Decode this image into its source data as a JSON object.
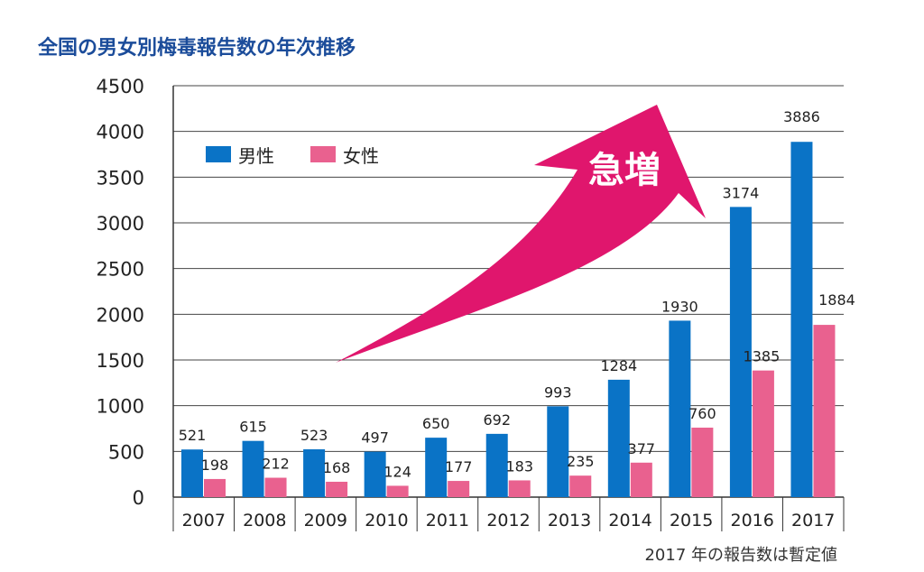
{
  "chart_data": {
    "type": "bar",
    "title": "全国の男女別梅毒報告数の年次推移",
    "categories": [
      "2007",
      "2008",
      "2009",
      "2010",
      "2011",
      "2012",
      "2013",
      "2014",
      "2015",
      "2016",
      "2017"
    ],
    "series": [
      {
        "name": "男性",
        "color": "#0a73c6",
        "values": [
          521,
          615,
          523,
          497,
          650,
          692,
          993,
          1284,
          1930,
          3174,
          3886
        ]
      },
      {
        "name": "女性",
        "color": "#e9618f",
        "values": [
          198,
          212,
          168,
          124,
          177,
          183,
          235,
          377,
          760,
          1385,
          1884
        ]
      }
    ],
    "ylim": [
      0,
      4500
    ],
    "yticks": [
      0,
      500,
      1000,
      1500,
      2000,
      2500,
      3000,
      3500,
      4000,
      4500
    ],
    "xlabel": "",
    "ylabel": "",
    "grid": true,
    "legend": "top-left",
    "annotation": {
      "text": "急増",
      "color": "#e0166d"
    },
    "note": "2017 年の報告数は暫定値"
  }
}
